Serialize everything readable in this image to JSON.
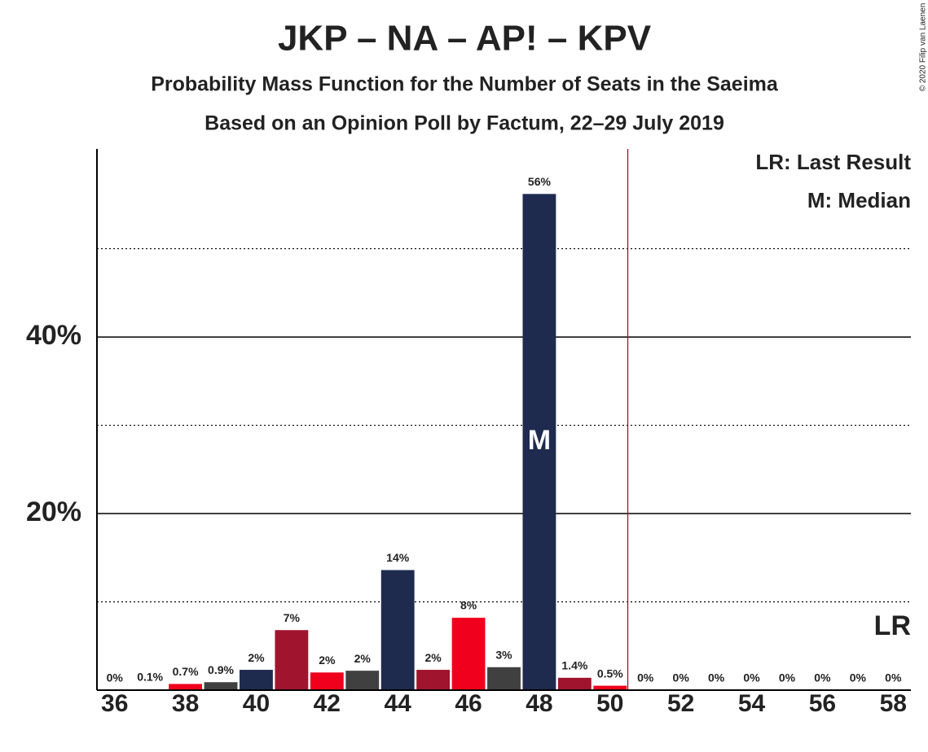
{
  "chart_data": {
    "type": "bar",
    "title": "JKP – NA – AP! – KPV",
    "subtitle": "Probability Mass Function for the Number of Seats in the Saeima",
    "subtitle2": "Based on an Opinion Poll by Factum, 22–29 July 2019",
    "x": [
      36,
      37,
      38,
      39,
      40,
      41,
      42,
      43,
      44,
      45,
      46,
      47,
      48,
      49,
      50,
      51,
      52,
      53,
      54,
      55,
      56,
      57,
      58
    ],
    "values": [
      0,
      0.1,
      0.7,
      0.9,
      2.3,
      6.8,
      2.0,
      2.2,
      13.6,
      2.3,
      8.2,
      2.6,
      56.2,
      1.4,
      0.5,
      0,
      0,
      0,
      0,
      0,
      0,
      0,
      0
    ],
    "value_labels": [
      "0%",
      "0.1%",
      "0.7%",
      "0.9%",
      "2%",
      "7%",
      "2%",
      "2%",
      "14%",
      "2%",
      "8%",
      "3%",
      "56%",
      "1.4%",
      "0.5%",
      "0%",
      "0%",
      "0%",
      "0%",
      "0%",
      "0%",
      "0%",
      "0%"
    ],
    "colors": [
      "#1f2a4f",
      "#a0142e",
      "#f0001c",
      "#404040"
    ],
    "xlim": [
      35.5,
      58.5
    ],
    "xticks": [
      36,
      38,
      40,
      42,
      44,
      46,
      48,
      50,
      52,
      54,
      56,
      58
    ],
    "ylim": [
      0,
      61.3
    ],
    "yticks": [
      {
        "value": 20,
        "label": "20%"
      },
      {
        "value": 40,
        "label": "40%"
      }
    ],
    "minor_gridlines": [
      10,
      30,
      50
    ],
    "median": 48,
    "median_label": "M",
    "last_result": 51,
    "last_result_label": "LR",
    "legend": [
      "LR: Last Result",
      "M: Median"
    ],
    "copyright": "© 2020 Filip van Laenen"
  }
}
